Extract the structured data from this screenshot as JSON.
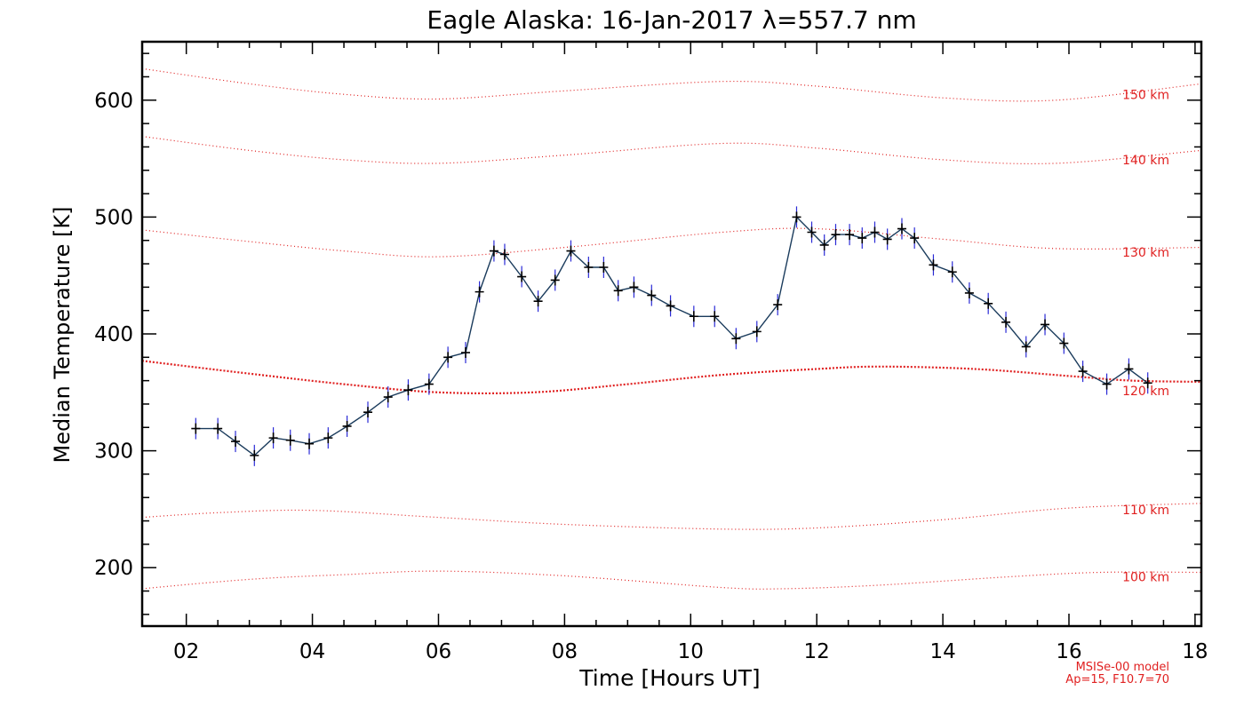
{
  "chart_data": {
    "type": "line",
    "title": "Eagle Alaska: 16-Jan-2017 λ=557.7 nm",
    "xlabel": "Time [Hours UT]",
    "ylabel": "Median Temperature [K]",
    "xlim": [
      1.3,
      18.1
    ],
    "ylim": [
      150,
      650
    ],
    "xticks": [
      "02",
      "04",
      "06",
      "08",
      "10",
      "12",
      "14",
      "16",
      "18"
    ],
    "xtick_values": [
      2,
      4,
      6,
      8,
      10,
      12,
      14,
      16,
      18
    ],
    "yticks": [
      "200",
      "300",
      "400",
      "500",
      "600"
    ],
    "ytick_values": [
      200,
      300,
      400,
      500,
      600
    ],
    "grid": false,
    "series": [
      {
        "points": [
          [
            2.15,
            319
          ],
          [
            2.5,
            319
          ],
          [
            2.78,
            308
          ],
          [
            3.08,
            296
          ],
          [
            3.38,
            311
          ],
          [
            3.65,
            309
          ],
          [
            3.95,
            306
          ],
          [
            4.25,
            311
          ],
          [
            4.55,
            321
          ],
          [
            4.88,
            333
          ],
          [
            5.2,
            346
          ],
          [
            5.52,
            352
          ],
          [
            5.85,
            357
          ],
          [
            6.15,
            380
          ],
          [
            6.43,
            384
          ],
          [
            6.65,
            436
          ],
          [
            6.88,
            471
          ],
          [
            7.05,
            468
          ],
          [
            7.32,
            449
          ],
          [
            7.58,
            428
          ],
          [
            7.85,
            446
          ],
          [
            8.1,
            471
          ],
          [
            8.38,
            457
          ],
          [
            8.62,
            457
          ],
          [
            8.85,
            437
          ],
          [
            9.1,
            440
          ],
          [
            9.38,
            433
          ],
          [
            9.68,
            424
          ],
          [
            10.05,
            415
          ],
          [
            10.38,
            415
          ],
          [
            10.72,
            396
          ],
          [
            11.05,
            402
          ],
          [
            11.38,
            425
          ],
          [
            11.68,
            500
          ],
          [
            11.92,
            487
          ],
          [
            12.12,
            476
          ],
          [
            12.3,
            485
          ],
          [
            12.52,
            485
          ],
          [
            12.72,
            482
          ],
          [
            12.92,
            487
          ],
          [
            13.12,
            481
          ],
          [
            13.35,
            490
          ],
          [
            13.55,
            482
          ],
          [
            13.85,
            459
          ],
          [
            14.15,
            453
          ],
          [
            14.42,
            435
          ],
          [
            14.72,
            426
          ],
          [
            15.0,
            410
          ],
          [
            15.32,
            389
          ],
          [
            15.62,
            408
          ],
          [
            15.92,
            392
          ],
          [
            16.22,
            368
          ],
          [
            16.6,
            357
          ],
          [
            16.95,
            370
          ],
          [
            17.25,
            358
          ]
        ]
      }
    ],
    "reference_curves": [
      {
        "label": "150 km",
        "points": [
          [
            1.3,
            627
          ],
          [
            3,
            614
          ],
          [
            4.5,
            605
          ],
          [
            6,
            601
          ],
          [
            8,
            608
          ],
          [
            10.5,
            616
          ],
          [
            12,
            612
          ],
          [
            14,
            602
          ],
          [
            15.8,
            600
          ],
          [
            18.1,
            614
          ]
        ]
      },
      {
        "label": "140 km",
        "points": [
          [
            1.3,
            569
          ],
          [
            3,
            557
          ],
          [
            4.5,
            549
          ],
          [
            6,
            546
          ],
          [
            8,
            553
          ],
          [
            10.5,
            563
          ],
          [
            12,
            559
          ],
          [
            14,
            549
          ],
          [
            15.8,
            546
          ],
          [
            18.1,
            557
          ]
        ]
      },
      {
        "label": "130 km",
        "points": [
          [
            1.3,
            489
          ],
          [
            3,
            479
          ],
          [
            4.5,
            471
          ],
          [
            6,
            466
          ],
          [
            8,
            474
          ],
          [
            10.5,
            487
          ],
          [
            12,
            490
          ],
          [
            14,
            481
          ],
          [
            15.8,
            473
          ],
          [
            18.1,
            474
          ]
        ]
      },
      {
        "label": "120 km",
        "points": [
          [
            1.3,
            377
          ],
          [
            3,
            366
          ],
          [
            4.5,
            357
          ],
          [
            6,
            350
          ],
          [
            7.5,
            350
          ],
          [
            9,
            357
          ],
          [
            10.5,
            365
          ],
          [
            12,
            370
          ],
          [
            13,
            372
          ],
          [
            14.5,
            370
          ],
          [
            16,
            364
          ],
          [
            17,
            360
          ],
          [
            18.1,
            359
          ]
        ]
      },
      {
        "label": "110 km",
        "points": [
          [
            1.3,
            243
          ],
          [
            2.5,
            247
          ],
          [
            4,
            249
          ],
          [
            6,
            243
          ],
          [
            8,
            237
          ],
          [
            10.5,
            233
          ],
          [
            12,
            234
          ],
          [
            14,
            241
          ],
          [
            16,
            251
          ],
          [
            18.1,
            255
          ]
        ]
      },
      {
        "label": "100 km",
        "points": [
          [
            1.3,
            182
          ],
          [
            3,
            190
          ],
          [
            4.5,
            194
          ],
          [
            6,
            197
          ],
          [
            8,
            193
          ],
          [
            10.5,
            183
          ],
          [
            11.5,
            182
          ],
          [
            13,
            185
          ],
          [
            15,
            192
          ],
          [
            16.5,
            196
          ],
          [
            18.1,
            196
          ]
        ]
      }
    ],
    "model_note": [
      "MSISe-00 model",
      "Ap=15, F10.7=70"
    ]
  },
  "colors": {
    "data_line": "#1a3b5c",
    "marker": "#000000",
    "error_bar": "#2a2ad6",
    "model_curve": "#e02020",
    "axis": "#000000"
  }
}
